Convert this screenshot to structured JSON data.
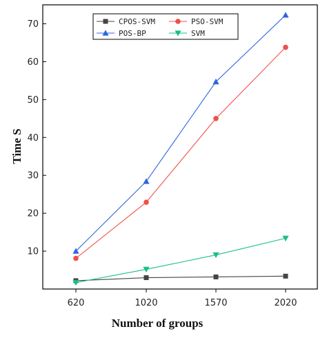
{
  "chart_data": {
    "type": "line",
    "title": "",
    "xlabel": "Number of groups",
    "ylabel": "Time S",
    "categories": [
      "620",
      "1020",
      "1570",
      "2020"
    ],
    "x_ticks": [
      "620",
      "1020",
      "1570",
      "2020"
    ],
    "y_ticks": [
      "10",
      "20",
      "30",
      "40",
      "50",
      "60",
      "70"
    ],
    "ylim": [
      0,
      75
    ],
    "grid": false,
    "legend_placement": "top-center",
    "series": [
      {
        "name": "CPOS-SVM",
        "marker": "square",
        "color": "#444444",
        "values": [
          2.2,
          3.0,
          3.2,
          3.4
        ]
      },
      {
        "name": "PSO-SVM",
        "marker": "circle",
        "color": "#f0504a",
        "values": [
          8.1,
          22.9,
          45.0,
          63.8
        ]
      },
      {
        "name": "POS-BP",
        "marker": "triangle-up",
        "color": "#2c66e0",
        "values": [
          10.0,
          28.4,
          54.7,
          72.3
        ]
      },
      {
        "name": "SVM",
        "marker": "triangle-down",
        "color": "#19c083",
        "values": [
          1.7,
          5.2,
          9.0,
          13.4
        ]
      }
    ]
  }
}
